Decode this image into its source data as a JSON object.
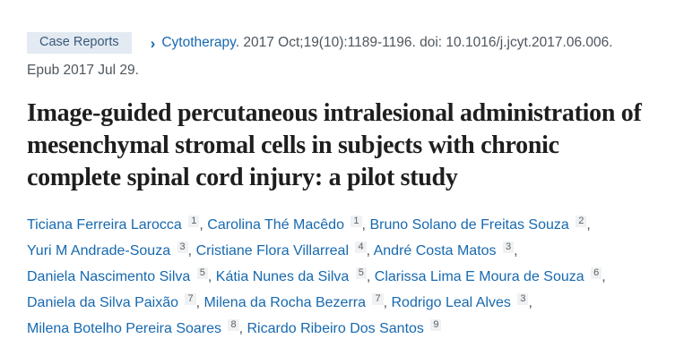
{
  "header": {
    "publication_type": "Case Reports",
    "chevron": "›",
    "journal": "Cytotherapy",
    "citation_rest": ". 2017 Oct;19(10):1189-1196. doi: 10.1016/j.jcyt.2017.06.006.",
    "epub": "Epub 2017 Jul 29."
  },
  "title": "Image-guided percutaneous intralesional administration of mesenchymal stromal cells in subjects with chronic complete spinal cord injury: a pilot study",
  "authors": {
    "lines": [
      [
        {
          "name": "Ticiana Ferreira Larocca",
          "affiliation": "1"
        },
        {
          "name": "Carolina Thé Macêdo",
          "affiliation": "1"
        },
        {
          "name": "Bruno Solano de Freitas Souza",
          "affiliation": "2"
        }
      ],
      [
        {
          "name": "Yuri M Andrade-Souza",
          "affiliation": "3"
        },
        {
          "name": "Cristiane Flora Villarreal",
          "affiliation": "4"
        },
        {
          "name": "André Costa Matos",
          "affiliation": "3"
        }
      ],
      [
        {
          "name": "Daniela Nascimento Silva",
          "affiliation": "5"
        },
        {
          "name": "Kátia Nunes da Silva",
          "affiliation": "5"
        },
        {
          "name": "Clarissa Lima E Moura de Souza",
          "affiliation": "6"
        }
      ],
      [
        {
          "name": "Daniela da Silva Paixão",
          "affiliation": "7"
        },
        {
          "name": "Milena da Rocha Bezerra",
          "affiliation": "7"
        },
        {
          "name": "Rodrigo Leal Alves",
          "affiliation": "3"
        }
      ],
      [
        {
          "name": "Milena Botelho Pereira Soares",
          "affiliation": "8"
        },
        {
          "name": "Ricardo Ribeiro Dos Santos",
          "affiliation": "9"
        }
      ]
    ]
  },
  "colors": {
    "link_blue": "#1769af",
    "badge_bg": "#e3eaf2",
    "badge_text": "#38597a",
    "text_gray": "#4e565e",
    "title_color": "#1e1e1e",
    "sup_bg": "#f0f1f2",
    "sup_text": "#5a6268"
  }
}
